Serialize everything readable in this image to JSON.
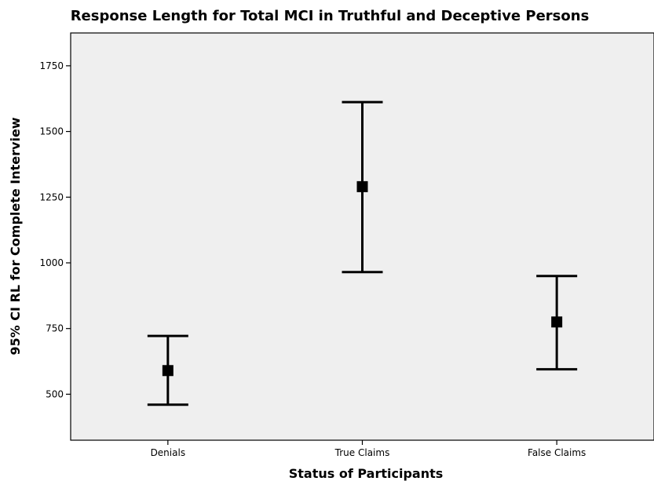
{
  "chart_data": {
    "type": "errorbar",
    "title": "Response Length for Total MCI in Truthful and Deceptive Persons",
    "xlabel": "Status of Participants",
    "ylabel": "95% CI RL for Complete Interview",
    "categories": [
      "Denials",
      "True Claims",
      "False Claims"
    ],
    "series": [
      {
        "means": [
          590,
          1290,
          775
        ],
        "lower": [
          460,
          965,
          595
        ],
        "upper": [
          722,
          1612,
          950
        ]
      }
    ],
    "ylim": [
      325,
      1875
    ],
    "yticks": [
      500,
      750,
      1000,
      1250,
      1500,
      1750
    ],
    "ytick_labels": [
      "500",
      "750",
      "1000",
      "1250",
      "1500",
      "1750"
    ],
    "grid": false,
    "colors": {
      "plot_background": "#efefef",
      "marks": "#000000"
    }
  }
}
